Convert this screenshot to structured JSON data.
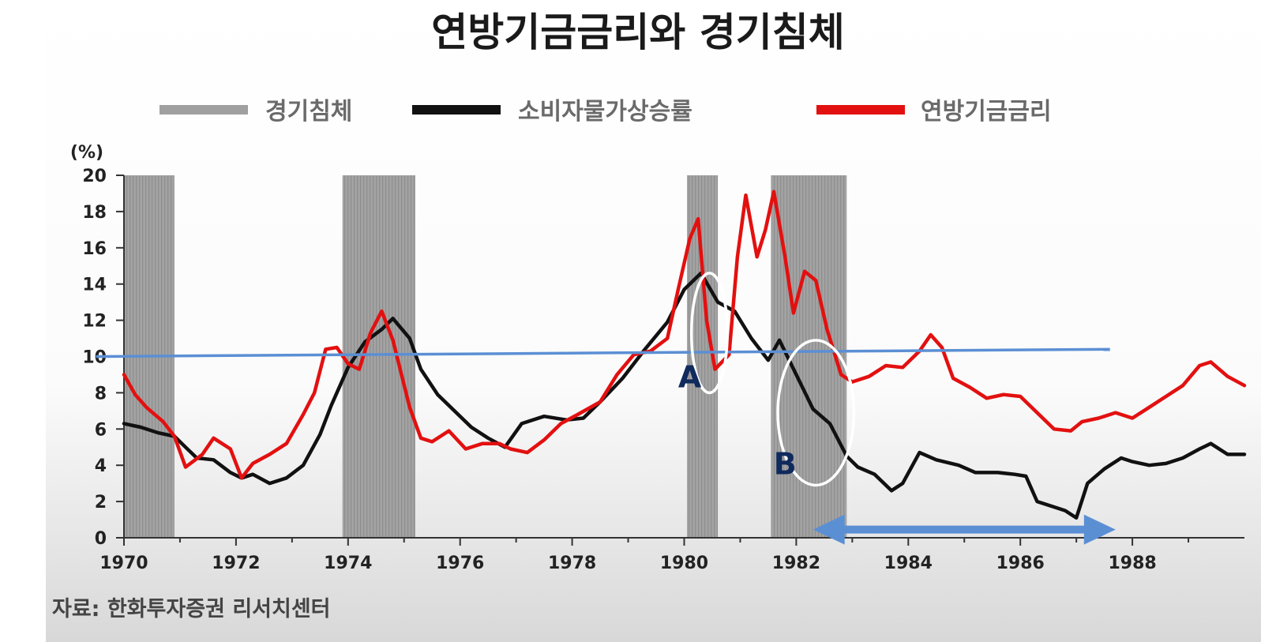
{
  "chart_data": {
    "type": "line",
    "title": "연방기금금리와 경기침체",
    "unit_label": "(%)",
    "source": "자료: 한화투자증권 리서치센터",
    "ylim": [
      0,
      20
    ],
    "y_ticks": [
      0,
      2,
      4,
      6,
      8,
      10,
      12,
      14,
      16,
      18,
      20
    ],
    "xlim": [
      1970,
      1990
    ],
    "x_ticks": [
      1970,
      1972,
      1974,
      1976,
      1978,
      1980,
      1982,
      1984,
      1986,
      1988
    ],
    "grid": false,
    "legend_position": "top",
    "legend": [
      {
        "label": "경기침체",
        "type": "band",
        "color": "#9e9e9e"
      },
      {
        "label": "소비자물가상승률",
        "type": "line",
        "color": "#111111"
      },
      {
        "label": "연방기금금리",
        "type": "line",
        "color": "#e31010"
      }
    ],
    "recessions": [
      {
        "start": 1970.0,
        "end": 1970.9
      },
      {
        "start": 1973.9,
        "end": 1975.2
      },
      {
        "start": 1980.05,
        "end": 1980.6
      },
      {
        "start": 1981.55,
        "end": 1982.9
      }
    ],
    "series": [
      {
        "name": "소비자물가상승률",
        "color": "#111111",
        "points": [
          [
            1970.0,
            6.3
          ],
          [
            1970.3,
            6.1
          ],
          [
            1970.6,
            5.8
          ],
          [
            1970.9,
            5.6
          ],
          [
            1971.1,
            5.0
          ],
          [
            1971.3,
            4.4
          ],
          [
            1971.6,
            4.3
          ],
          [
            1971.9,
            3.6
          ],
          [
            1972.1,
            3.3
          ],
          [
            1972.3,
            3.5
          ],
          [
            1972.6,
            3.0
          ],
          [
            1972.9,
            3.3
          ],
          [
            1973.2,
            4.0
          ],
          [
            1973.5,
            5.7
          ],
          [
            1973.7,
            7.3
          ],
          [
            1974.0,
            9.4
          ],
          [
            1974.3,
            10.8
          ],
          [
            1974.6,
            11.5
          ],
          [
            1974.8,
            12.1
          ],
          [
            1975.1,
            11.0
          ],
          [
            1975.3,
            9.3
          ],
          [
            1975.6,
            7.9
          ],
          [
            1975.9,
            7.0
          ],
          [
            1976.2,
            6.1
          ],
          [
            1976.5,
            5.5
          ],
          [
            1976.8,
            5.0
          ],
          [
            1977.1,
            6.3
          ],
          [
            1977.5,
            6.7
          ],
          [
            1977.9,
            6.5
          ],
          [
            1978.2,
            6.6
          ],
          [
            1978.5,
            7.5
          ],
          [
            1978.9,
            8.8
          ],
          [
            1979.3,
            10.4
          ],
          [
            1979.7,
            11.9
          ],
          [
            1980.0,
            13.7
          ],
          [
            1980.3,
            14.6
          ],
          [
            1980.6,
            13.0
          ],
          [
            1980.9,
            12.5
          ],
          [
            1981.2,
            11.0
          ],
          [
            1981.5,
            9.8
          ],
          [
            1981.7,
            10.9
          ],
          [
            1982.0,
            9.0
          ],
          [
            1982.3,
            7.1
          ],
          [
            1982.6,
            6.3
          ],
          [
            1982.9,
            4.5
          ],
          [
            1983.1,
            3.9
          ],
          [
            1983.4,
            3.5
          ],
          [
            1983.7,
            2.6
          ],
          [
            1983.9,
            3.0
          ],
          [
            1984.2,
            4.7
          ],
          [
            1984.5,
            4.3
          ],
          [
            1984.9,
            4.0
          ],
          [
            1985.2,
            3.6
          ],
          [
            1985.6,
            3.6
          ],
          [
            1985.9,
            3.5
          ],
          [
            1986.1,
            3.4
          ],
          [
            1986.3,
            2.0
          ],
          [
            1986.6,
            1.7
          ],
          [
            1986.8,
            1.5
          ],
          [
            1987.0,
            1.1
          ],
          [
            1987.2,
            3.0
          ],
          [
            1987.5,
            3.8
          ],
          [
            1987.8,
            4.4
          ],
          [
            1988.0,
            4.2
          ],
          [
            1988.3,
            4.0
          ],
          [
            1988.6,
            4.1
          ],
          [
            1988.9,
            4.4
          ],
          [
            1989.2,
            4.9
          ],
          [
            1989.4,
            5.2
          ],
          [
            1989.7,
            4.6
          ],
          [
            1990.0,
            4.6
          ]
        ]
      },
      {
        "name": "연방기금금리",
        "color": "#e31010",
        "points": [
          [
            1970.0,
            9.0
          ],
          [
            1970.2,
            7.9
          ],
          [
            1970.4,
            7.2
          ],
          [
            1970.7,
            6.4
          ],
          [
            1970.9,
            5.6
          ],
          [
            1971.1,
            3.9
          ],
          [
            1971.4,
            4.6
          ],
          [
            1971.6,
            5.5
          ],
          [
            1971.9,
            4.9
          ],
          [
            1972.1,
            3.3
          ],
          [
            1972.3,
            4.1
          ],
          [
            1972.6,
            4.6
          ],
          [
            1972.9,
            5.2
          ],
          [
            1973.2,
            6.8
          ],
          [
            1973.4,
            8.0
          ],
          [
            1973.6,
            10.4
          ],
          [
            1973.8,
            10.5
          ],
          [
            1974.0,
            9.6
          ],
          [
            1974.2,
            9.3
          ],
          [
            1974.4,
            11.3
          ],
          [
            1974.6,
            12.5
          ],
          [
            1974.8,
            10.9
          ],
          [
            1975.1,
            7.2
          ],
          [
            1975.3,
            5.5
          ],
          [
            1975.5,
            5.3
          ],
          [
            1975.8,
            5.9
          ],
          [
            1976.1,
            4.9
          ],
          [
            1976.4,
            5.2
          ],
          [
            1976.7,
            5.2
          ],
          [
            1976.9,
            4.9
          ],
          [
            1977.2,
            4.7
          ],
          [
            1977.5,
            5.4
          ],
          [
            1977.8,
            6.3
          ],
          [
            1978.1,
            6.8
          ],
          [
            1978.5,
            7.5
          ],
          [
            1978.8,
            9.0
          ],
          [
            1979.1,
            10.1
          ],
          [
            1979.4,
            10.3
          ],
          [
            1979.7,
            11.0
          ],
          [
            1979.9,
            13.8
          ],
          [
            1980.1,
            16.5
          ],
          [
            1980.25,
            17.6
          ],
          [
            1980.4,
            12.0
          ],
          [
            1980.55,
            9.3
          ],
          [
            1980.8,
            10.1
          ],
          [
            1980.95,
            15.5
          ],
          [
            1981.1,
            18.9
          ],
          [
            1981.3,
            15.5
          ],
          [
            1981.45,
            17.0
          ],
          [
            1981.6,
            19.1
          ],
          [
            1981.8,
            15.5
          ],
          [
            1981.95,
            12.4
          ],
          [
            1982.15,
            14.7
          ],
          [
            1982.35,
            14.2
          ],
          [
            1982.55,
            11.5
          ],
          [
            1982.8,
            9.0
          ],
          [
            1983.0,
            8.6
          ],
          [
            1983.3,
            8.9
          ],
          [
            1983.6,
            9.5
          ],
          [
            1983.9,
            9.4
          ],
          [
            1984.2,
            10.3
          ],
          [
            1984.4,
            11.2
          ],
          [
            1984.6,
            10.5
          ],
          [
            1984.8,
            8.8
          ],
          [
            1985.1,
            8.3
          ],
          [
            1985.4,
            7.7
          ],
          [
            1985.7,
            7.9
          ],
          [
            1986.0,
            7.8
          ],
          [
            1986.3,
            6.9
          ],
          [
            1986.6,
            6.0
          ],
          [
            1986.9,
            5.9
          ],
          [
            1987.1,
            6.4
          ],
          [
            1987.4,
            6.6
          ],
          [
            1987.7,
            6.9
          ],
          [
            1988.0,
            6.6
          ],
          [
            1988.3,
            7.2
          ],
          [
            1988.6,
            7.8
          ],
          [
            1988.9,
            8.4
          ],
          [
            1989.2,
            9.5
          ],
          [
            1989.4,
            9.7
          ],
          [
            1989.7,
            8.9
          ],
          [
            1990.0,
            8.4
          ]
        ]
      }
    ],
    "annotations": [
      {
        "label": "A",
        "x": 1980.1,
        "y": 8.3,
        "color": "#0f2a5c"
      },
      {
        "label": "B",
        "x": 1981.8,
        "y": 3.5,
        "color": "#0f2a5c"
      }
    ],
    "overlays": {
      "reference_line": {
        "x1": 1969.5,
        "y1": 10.0,
        "x2": 1987.6,
        "y2": 10.4,
        "color": "#5b8fd4"
      },
      "ellipses": [
        {
          "cx": 1980.45,
          "cy": 11.3,
          "rx_years": 0.32,
          "ry": 3.3
        },
        {
          "cx": 1982.35,
          "cy": 6.9,
          "rx_years": 0.68,
          "ry": 4.0
        }
      ],
      "double_arrow": {
        "x1": 1982.3,
        "x2": 1987.7,
        "y": 0.45,
        "color": "#5b8fd4"
      }
    }
  }
}
